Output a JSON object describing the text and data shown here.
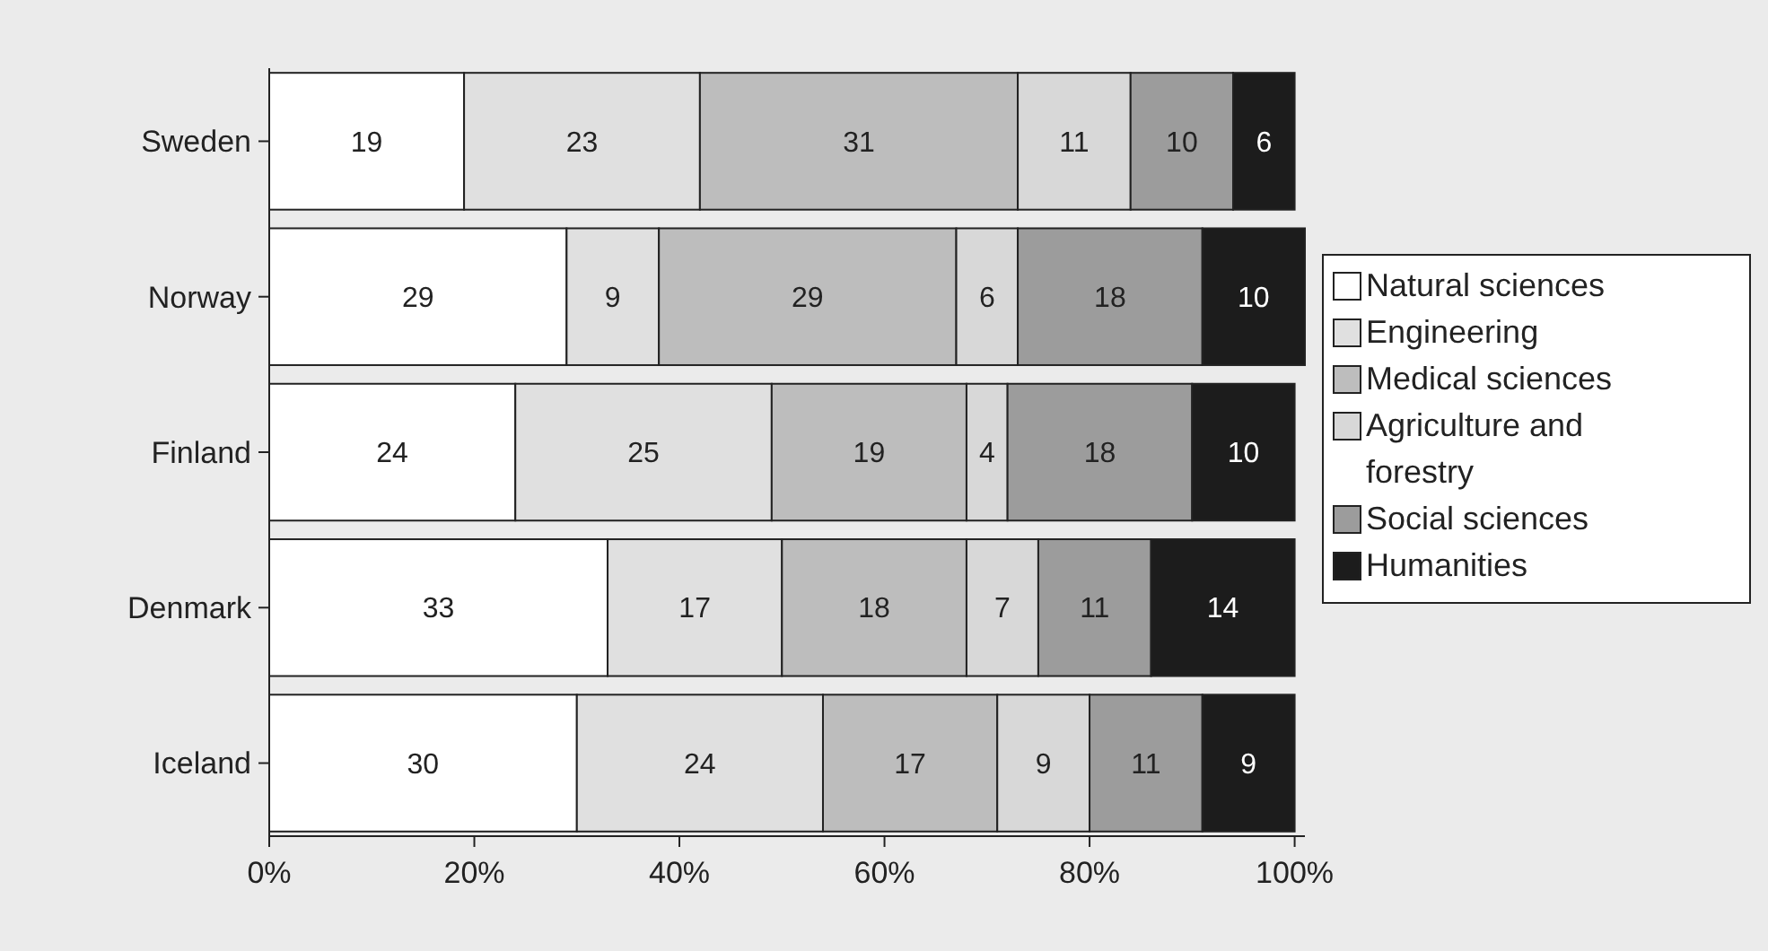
{
  "chart_data": {
    "type": "bar",
    "orientation": "horizontal",
    "stacked": true,
    "data_labels": true,
    "legend": "right",
    "grid": false,
    "categories": [
      "Sweden",
      "Norway",
      "Finland",
      "Denmark",
      "Iceland"
    ],
    "xlim": [
      0,
      101
    ],
    "xticks": [
      {
        "value": 0,
        "label": "0%"
      },
      {
        "value": 20,
        "label": "20%"
      },
      {
        "value": 40,
        "label": "40%"
      },
      {
        "value": 60,
        "label": "60%"
      },
      {
        "value": 80,
        "label": "80%"
      },
      {
        "value": 100,
        "label": "100%"
      }
    ],
    "series": [
      {
        "name": "Natural sciences",
        "color": "#ffffff",
        "values": [
          19,
          29,
          24,
          33,
          30
        ]
      },
      {
        "name": "Engineering",
        "color": "#e0e0e0",
        "values": [
          23,
          9,
          25,
          17,
          24
        ]
      },
      {
        "name": "Medical sciences",
        "color": "#bdbdbd",
        "values": [
          31,
          29,
          19,
          18,
          17
        ]
      },
      {
        "name": "Agriculture and forestry",
        "color": "#d8d8d8",
        "values": [
          11,
          6,
          4,
          7,
          9
        ]
      },
      {
        "name": "Social sciences",
        "color": "#9c9c9c",
        "values": [
          10,
          18,
          18,
          11,
          11
        ]
      },
      {
        "name": "Humanities",
        "color": "#1c1c1c",
        "values": [
          6,
          10,
          10,
          14,
          9
        ]
      }
    ]
  }
}
